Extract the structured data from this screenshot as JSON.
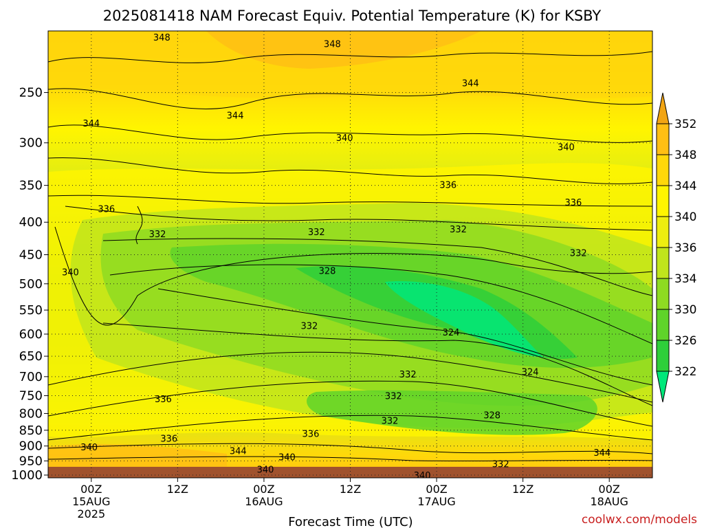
{
  "chart_data": {
    "type": "heatmap",
    "title": "2025081418 NAM Forecast Equiv. Potential Temperature (K) for KSBY",
    "xlabel": "Forecast Time (UTC)",
    "ylabel": "",
    "x_ticks": [
      {
        "hour": 6,
        "lines": [
          "00Z",
          "15AUG",
          "2025"
        ]
      },
      {
        "hour": 18,
        "lines": [
          "12Z"
        ]
      },
      {
        "hour": 30,
        "lines": [
          "00Z",
          "16AUG"
        ]
      },
      {
        "hour": 42,
        "lines": [
          "12Z"
        ]
      },
      {
        "hour": 54,
        "lines": [
          "00Z",
          "17AUG"
        ]
      },
      {
        "hour": 66,
        "lines": [
          "12Z"
        ]
      },
      {
        "hour": 78,
        "lines": [
          "00Z",
          "18AUG"
        ]
      }
    ],
    "xlim_hours": [
      0,
      84
    ],
    "y_ticks": [
      250,
      300,
      350,
      400,
      450,
      500,
      550,
      600,
      650,
      700,
      750,
      800,
      850,
      900,
      950,
      1000
    ],
    "ylim": [
      1010,
      200
    ],
    "y_scale": "log",
    "grid": true,
    "colorbar": {
      "levels": [
        322,
        326,
        330,
        334,
        336,
        340,
        344,
        348,
        352
      ],
      "labels": [
        "352",
        "348",
        "344",
        "340",
        "336",
        "334",
        "330",
        "326",
        "322"
      ],
      "colors": [
        "#00e87a",
        "#2ecf3a",
        "#5fd42a",
        "#8edb22",
        "#c0e51c",
        "#eeee10",
        "#fff500",
        "#ffd80a",
        "#ffbf14",
        "#f2a514"
      ]
    },
    "contour_labels": [
      {
        "text": "348",
        "hour": 15.8,
        "p": 205
      },
      {
        "text": "348",
        "hour": 39.5,
        "p": 210
      },
      {
        "text": "344",
        "hour": 58.7,
        "p": 242
      },
      {
        "text": "344",
        "hour": 26.0,
        "p": 272
      },
      {
        "text": "344",
        "hour": 6.0,
        "p": 280
      },
      {
        "text": "340",
        "hour": 41.2,
        "p": 295
      },
      {
        "text": "340",
        "hour": 72.0,
        "p": 305
      },
      {
        "text": "336",
        "hour": 55.6,
        "p": 350
      },
      {
        "text": "336",
        "hour": 73.0,
        "p": 373
      },
      {
        "text": "336",
        "hour": 8.1,
        "p": 382
      },
      {
        "text": "332",
        "hour": 15.2,
        "p": 418
      },
      {
        "text": "332",
        "hour": 37.3,
        "p": 415
      },
      {
        "text": "332",
        "hour": 57.0,
        "p": 411
      },
      {
        "text": "332",
        "hour": 73.7,
        "p": 448
      },
      {
        "text": "340",
        "hour": 3.1,
        "p": 480
      },
      {
        "text": "328",
        "hour": 38.8,
        "p": 478
      },
      {
        "text": "332",
        "hour": 36.3,
        "p": 583
      },
      {
        "text": "324",
        "hour": 56.0,
        "p": 597
      },
      {
        "text": "324",
        "hour": 67.0,
        "p": 689
      },
      {
        "text": "332",
        "hour": 50.0,
        "p": 695
      },
      {
        "text": "332",
        "hour": 48.0,
        "p": 752
      },
      {
        "text": "336",
        "hour": 16.0,
        "p": 760
      },
      {
        "text": "332",
        "hour": 47.5,
        "p": 822
      },
      {
        "text": "328",
        "hour": 61.7,
        "p": 806
      },
      {
        "text": "336",
        "hour": 36.5,
        "p": 862
      },
      {
        "text": "336",
        "hour": 16.8,
        "p": 877
      },
      {
        "text": "340",
        "hour": 5.7,
        "p": 905
      },
      {
        "text": "344",
        "hour": 26.4,
        "p": 918
      },
      {
        "text": "340",
        "hour": 33.2,
        "p": 938
      },
      {
        "text": "344",
        "hour": 77.0,
        "p": 923
      },
      {
        "text": "332",
        "hour": 62.9,
        "p": 962
      },
      {
        "text": "340",
        "hour": 30.2,
        "p": 982
      },
      {
        "text": "340",
        "hour": 52.0,
        "p": 1002
      }
    ]
  },
  "credit": "coolwx.com/models"
}
